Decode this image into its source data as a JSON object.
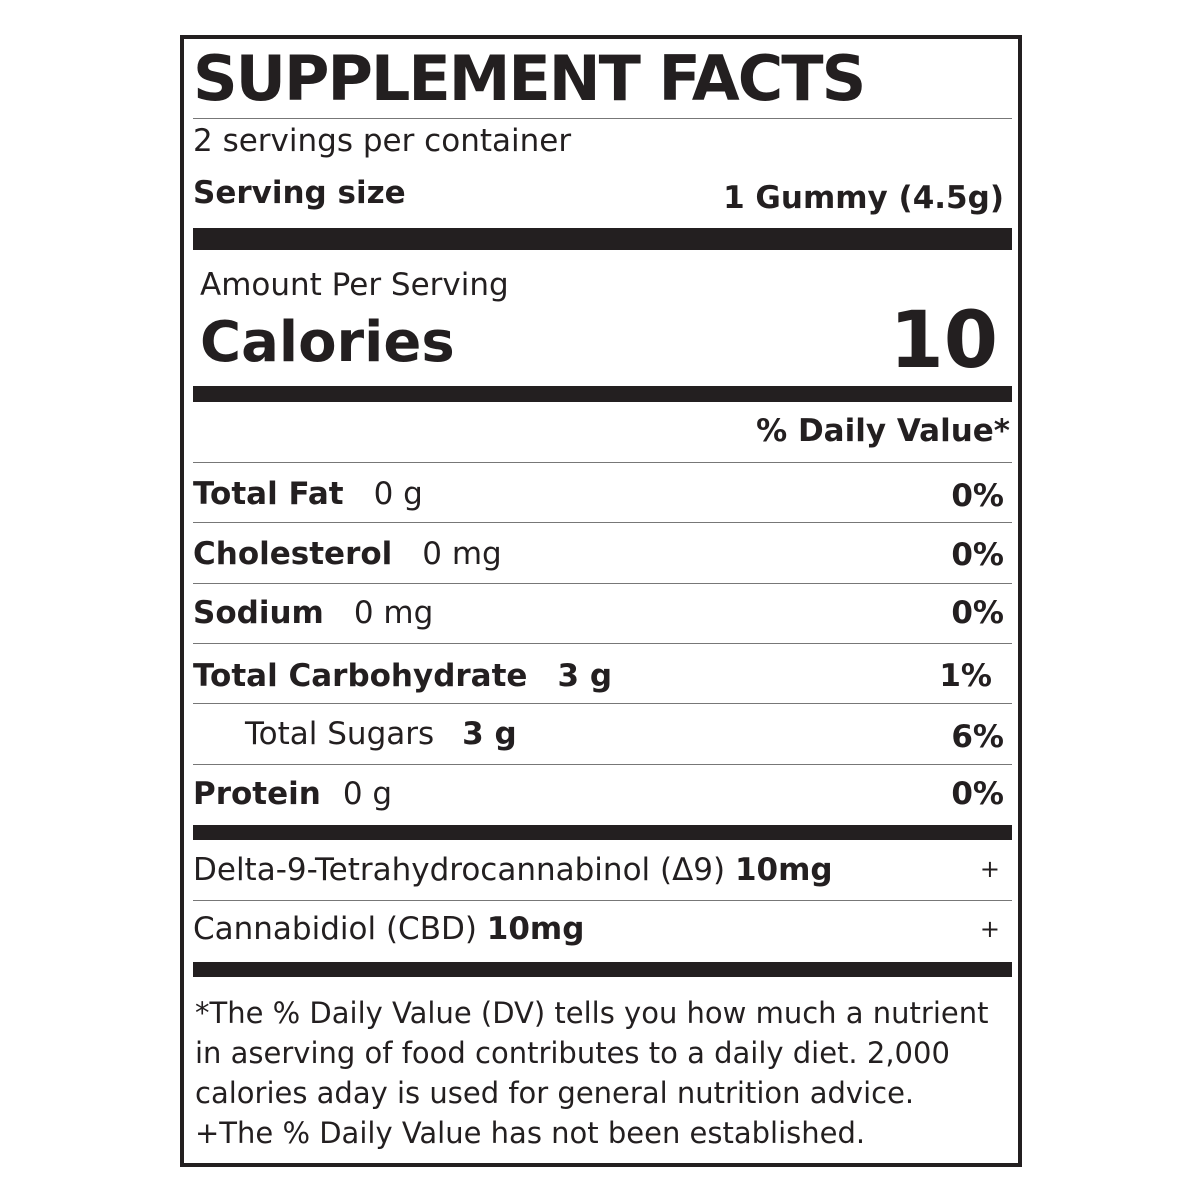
{
  "title": "SUPPLEMENT FACTS",
  "servings_per_container": "2 servings per container",
  "serving_size": {
    "label": "Serving size",
    "value": "1 Gummy (4.5g)"
  },
  "amount_per_serving": "Amount Per Serving",
  "calories": {
    "label": "Calories",
    "value": "10"
  },
  "daily_value_header": "% Daily Value*",
  "nutrients": [
    {
      "name": "Total Fat",
      "amount": "0 g",
      "dv": "0%"
    },
    {
      "name": "Cholesterol",
      "amount": "0 mg",
      "dv": "0%"
    },
    {
      "name": "Sodium",
      "amount": "0 mg",
      "dv": "0%"
    },
    {
      "name": "Total Carbohydrate",
      "amount": "3 g",
      "dv": "1%"
    },
    {
      "name": "Total Sugars",
      "amount": "3 g",
      "dv": "6%"
    },
    {
      "name": "Protein",
      "amount": "0 g",
      "dv": "0%"
    }
  ],
  "cannabinoids": [
    {
      "name": "Delta-9-Tetrahydrocannabinol (Δ9)",
      "amount": "10mg",
      "dv": "+"
    },
    {
      "name": "Cannabidiol (CBD)",
      "amount": "10mg",
      "dv": "+"
    }
  ],
  "footnote": [
    "*The % Daily Value (DV) tells you how much a nutrient",
    "in aserving of food contributes to a daily diet. 2,000",
    "calories aday is used for general nutrition advice.",
    "+The % Daily Value has not been established."
  ]
}
